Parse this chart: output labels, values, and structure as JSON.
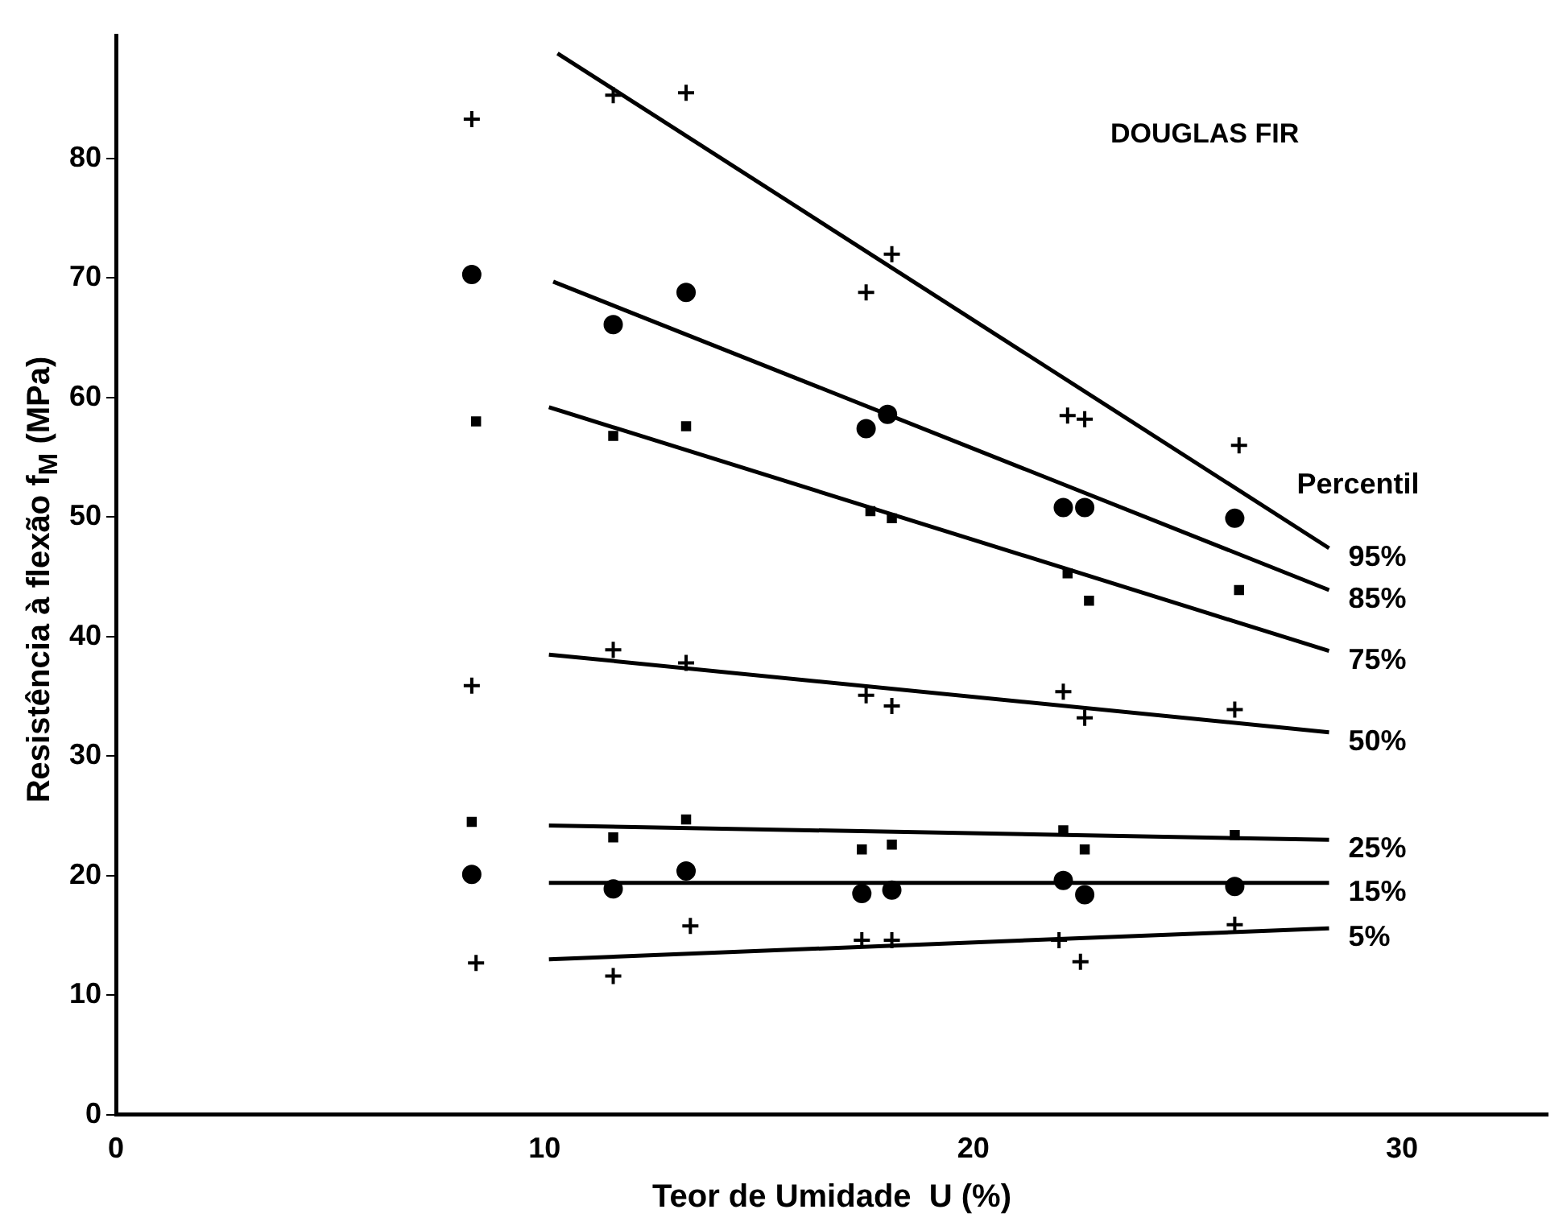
{
  "chart_data": {
    "type": "scatter",
    "xlabel": "Teor de Umidade  U (%)",
    "ylabel": "Resistência à flexão  f$_{M}$ (MPa)",
    "legend_title": "Percentil",
    "annotations": [
      "DOUGLAS FIR"
    ],
    "xlim": [
      0,
      33.4
    ],
    "xticks": [
      0,
      10,
      20,
      30
    ],
    "ylim": [
      0,
      90.3
    ],
    "yticks": [
      0,
      10,
      20,
      30,
      40,
      50,
      60,
      70,
      80
    ],
    "grid": false,
    "legend": false,
    "series": [
      {
        "marker": "cross",
        "color": "#000000",
        "x": [
          8.3,
          11.6,
          13.3,
          17.5,
          18.1,
          22.2,
          22.6,
          26.2
        ],
        "values": [
          83.3,
          85.3,
          85.5,
          68.8,
          72,
          58.5,
          58.2,
          56
        ]
      },
      {
        "marker": "circle",
        "color": "#000000",
        "x": [
          8.3,
          11.6,
          13.3,
          17.5,
          18,
          22.1,
          22.6,
          26.1
        ],
        "values": [
          70.3,
          66.1,
          68.8,
          57.4,
          58.6,
          50.8,
          50.8,
          49.9
        ]
      },
      {
        "marker": "square",
        "color": "#000000",
        "x": [
          8.4,
          11.6,
          13.3,
          17.6,
          18.1,
          22.2,
          22.7,
          26.2
        ],
        "values": [
          58,
          56.8,
          57.6,
          50.5,
          49.9,
          45.3,
          43,
          43.9
        ]
      },
      {
        "marker": "cross",
        "color": "#000000",
        "x": [
          8.3,
          11.6,
          13.3,
          17.5,
          18.1,
          22.1,
          22.6,
          26.1
        ],
        "values": [
          35.9,
          38.9,
          37.8,
          35.1,
          34.2,
          35.4,
          33.2,
          33.9
        ]
      },
      {
        "marker": "square",
        "color": "#000000",
        "x": [
          8.3,
          11.6,
          13.3,
          17.4,
          18.1,
          22.1,
          22.6,
          26.1
        ],
        "values": [
          24.5,
          23.2,
          24.7,
          22.2,
          22.6,
          23.8,
          22.2,
          23.4
        ]
      },
      {
        "marker": "circle",
        "color": "#000000",
        "x": [
          8.3,
          11.6,
          13.3,
          17.4,
          18.1,
          22.1,
          22.6,
          26.1
        ],
        "values": [
          20.1,
          18.9,
          20.4,
          18.5,
          18.8,
          19.6,
          18.4,
          19.1
        ]
      },
      {
        "marker": "cross",
        "color": "#000000",
        "x": [
          8.4,
          11.6,
          13.4,
          17.4,
          18.1,
          22,
          22.5,
          26.1
        ],
        "values": [
          12.7,
          11.6,
          15.8,
          14.6,
          14.6,
          14.6,
          12.8,
          15.9
        ]
      },
      {
        "type": "line",
        "name": "95%",
        "marker": "none",
        "color": "#000000",
        "x": [
          10.3,
          28.3
        ],
        "values": [
          88.8,
          47.4
        ]
      },
      {
        "type": "line",
        "name": "85%",
        "marker": "none",
        "color": "#000000",
        "x": [
          10.2,
          28.3
        ],
        "values": [
          69.7,
          43.9
        ]
      },
      {
        "type": "line",
        "name": "75%",
        "marker": "none",
        "color": "#000000",
        "x": [
          10.1,
          28.3
        ],
        "values": [
          59.2,
          38.8
        ]
      },
      {
        "type": "line",
        "name": "50%",
        "marker": "none",
        "color": "#000000",
        "x": [
          10.1,
          28.3
        ],
        "values": [
          38.5,
          32
        ]
      },
      {
        "type": "line",
        "name": "25%",
        "marker": "none",
        "color": "#000000",
        "x": [
          10.1,
          28.3
        ],
        "values": [
          24.2,
          23
        ]
      },
      {
        "type": "line",
        "name": "15%",
        "marker": "none",
        "color": "#000000",
        "x": [
          10.1,
          28.3
        ],
        "values": [
          19.4,
          19.4
        ]
      },
      {
        "type": "line",
        "name": "5%",
        "marker": "none",
        "color": "#000000",
        "x": [
          10.1,
          28.3
        ],
        "values": [
          13,
          15.6
        ]
      }
    ]
  }
}
